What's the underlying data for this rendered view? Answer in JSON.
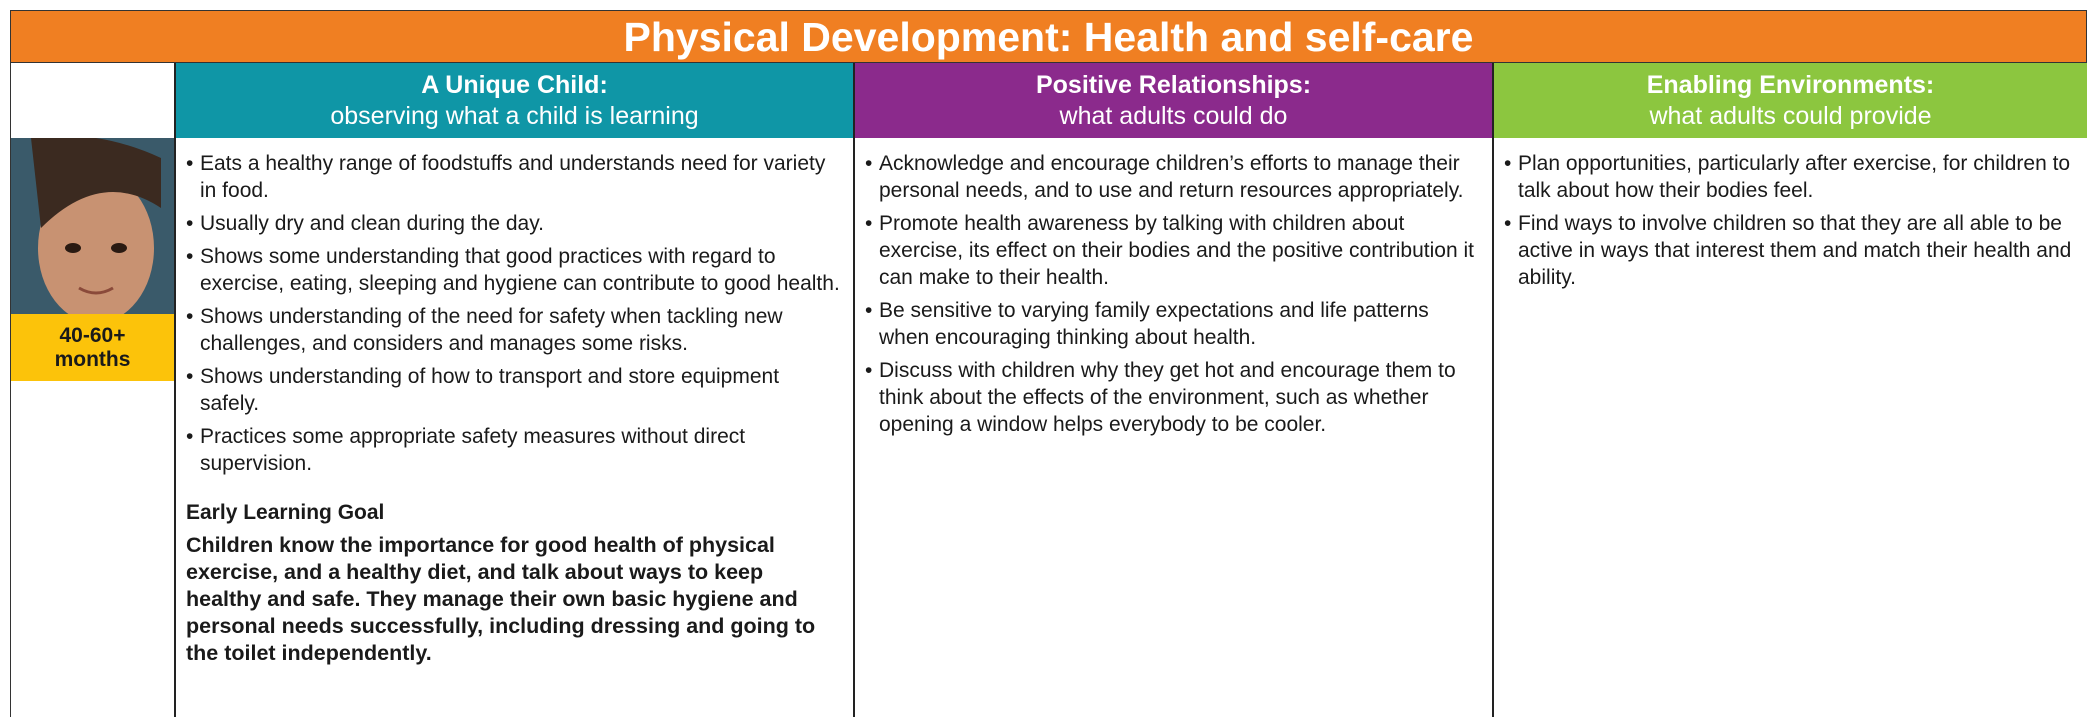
{
  "header": {
    "title": "Physical Development: Health and self-care"
  },
  "columns": [
    {
      "title": "A Unique Child:",
      "subtitle": "observing what a child is learning",
      "items": [
        "Eats a healthy range of foodstuffs and understands need for variety in food.",
        "Usually dry and clean during the day.",
        "Shows some understanding that good practices with regard to exercise, eating, sleeping and hygiene can contribute to good health.",
        "Shows understanding of the need for safety when tackling new challenges, and considers and manages some risks.",
        "Shows understanding of how to transport and store equipment safely.",
        "Practices some appropriate safety measures without direct supervision."
      ]
    },
    {
      "title": "Positive Relationships:",
      "subtitle": "what adults could do",
      "items": [
        "Acknowledge and encourage children’s efforts to manage their personal needs, and to use and return resources appropriately.",
        "Promote health awareness by talking with children about exercise, its effect on their bodies and the positive contribution it can make to their health.",
        "Be sensitive to varying family expectations and life patterns when encouraging thinking about health.",
        "Discuss with children why they get hot and encourage them to think about the effects of the environment, such as whether opening a window helps everybody to be cooler."
      ]
    },
    {
      "title": "Enabling Environments:",
      "subtitle": "what adults could provide",
      "items": [
        "Plan opportunities, particularly after exercise, for children to talk about how their bodies feel.",
        "Find ways to involve children so that they are all able to be active in ways that interest them and match their health and ability."
      ]
    }
  ],
  "age_label": "40-60+ months",
  "goal": {
    "heading": "Early Learning Goal",
    "text": "Children know the importance for good health of physical exercise, and a healthy diet, and talk about ways to keep healthy and safe. They manage their own basic hygiene and personal needs successfully, including dressing and going to the toilet independently."
  }
}
